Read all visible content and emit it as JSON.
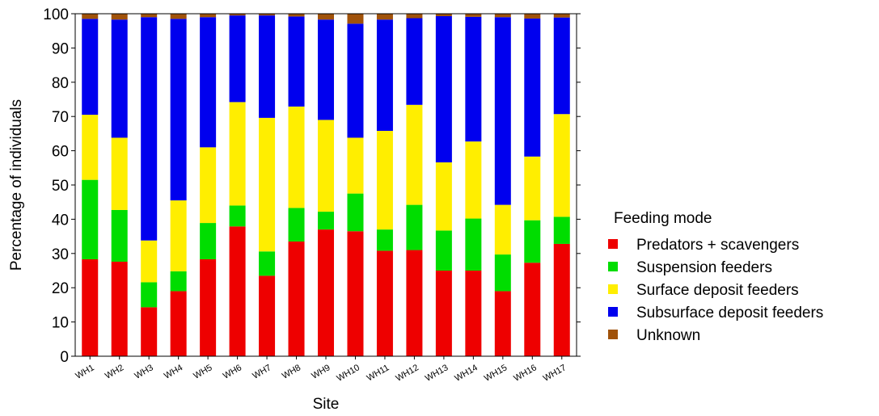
{
  "chart_data": {
    "type": "bar",
    "stacked": true,
    "xlabel": "Site",
    "ylabel": "Percentage of individuals",
    "ylim": [
      0,
      100
    ],
    "yticks": [
      0,
      10,
      20,
      30,
      40,
      50,
      60,
      70,
      80,
      90,
      100
    ],
    "grid": false,
    "legend_position": "right",
    "legend_title": "Feeding mode",
    "categories": [
      "WH1",
      "WH2",
      "WH3",
      "WH4",
      "WH5",
      "WH6",
      "WH7",
      "WH8",
      "WH9",
      "WH10",
      "WH11",
      "WH12",
      "WH13",
      "WH14",
      "WH15",
      "WH16",
      "WH17"
    ],
    "series": [
      {
        "name": "Predators + scavengers",
        "color": "#ee0000",
        "values": [
          28.3,
          27.6,
          14.3,
          19.0,
          28.3,
          37.9,
          23.5,
          33.5,
          37.0,
          36.5,
          30.8,
          31.0,
          25.0,
          25.0,
          19.0,
          27.3,
          32.8
        ]
      },
      {
        "name": "Suspension feeders",
        "color": "#00dd00",
        "values": [
          23.2,
          15.1,
          7.3,
          5.8,
          10.6,
          6.1,
          7.1,
          9.8,
          5.2,
          11.0,
          6.2,
          13.2,
          11.7,
          15.2,
          10.7,
          12.4,
          7.9
        ]
      },
      {
        "name": "Surface deposit feeders",
        "color": "#ffee00",
        "values": [
          19.0,
          21.1,
          12.2,
          20.7,
          22.1,
          30.2,
          39.0,
          29.6,
          26.8,
          16.3,
          28.8,
          29.2,
          19.9,
          22.5,
          14.5,
          18.6,
          30.0
        ]
      },
      {
        "name": "Subsurface deposit feeders",
        "color": "#0000ee",
        "values": [
          28.0,
          34.5,
          65.2,
          53.0,
          38.0,
          25.3,
          29.9,
          26.3,
          29.3,
          33.3,
          32.5,
          25.3,
          42.7,
          36.4,
          54.8,
          40.3,
          28.2
        ]
      },
      {
        "name": "Unknown",
        "color": "#a0520a",
        "values": [
          1.5,
          1.7,
          1.0,
          1.5,
          1.0,
          0.5,
          0.5,
          0.8,
          1.7,
          2.9,
          1.7,
          1.3,
          0.7,
          0.9,
          1.0,
          1.4,
          1.1
        ]
      }
    ]
  }
}
